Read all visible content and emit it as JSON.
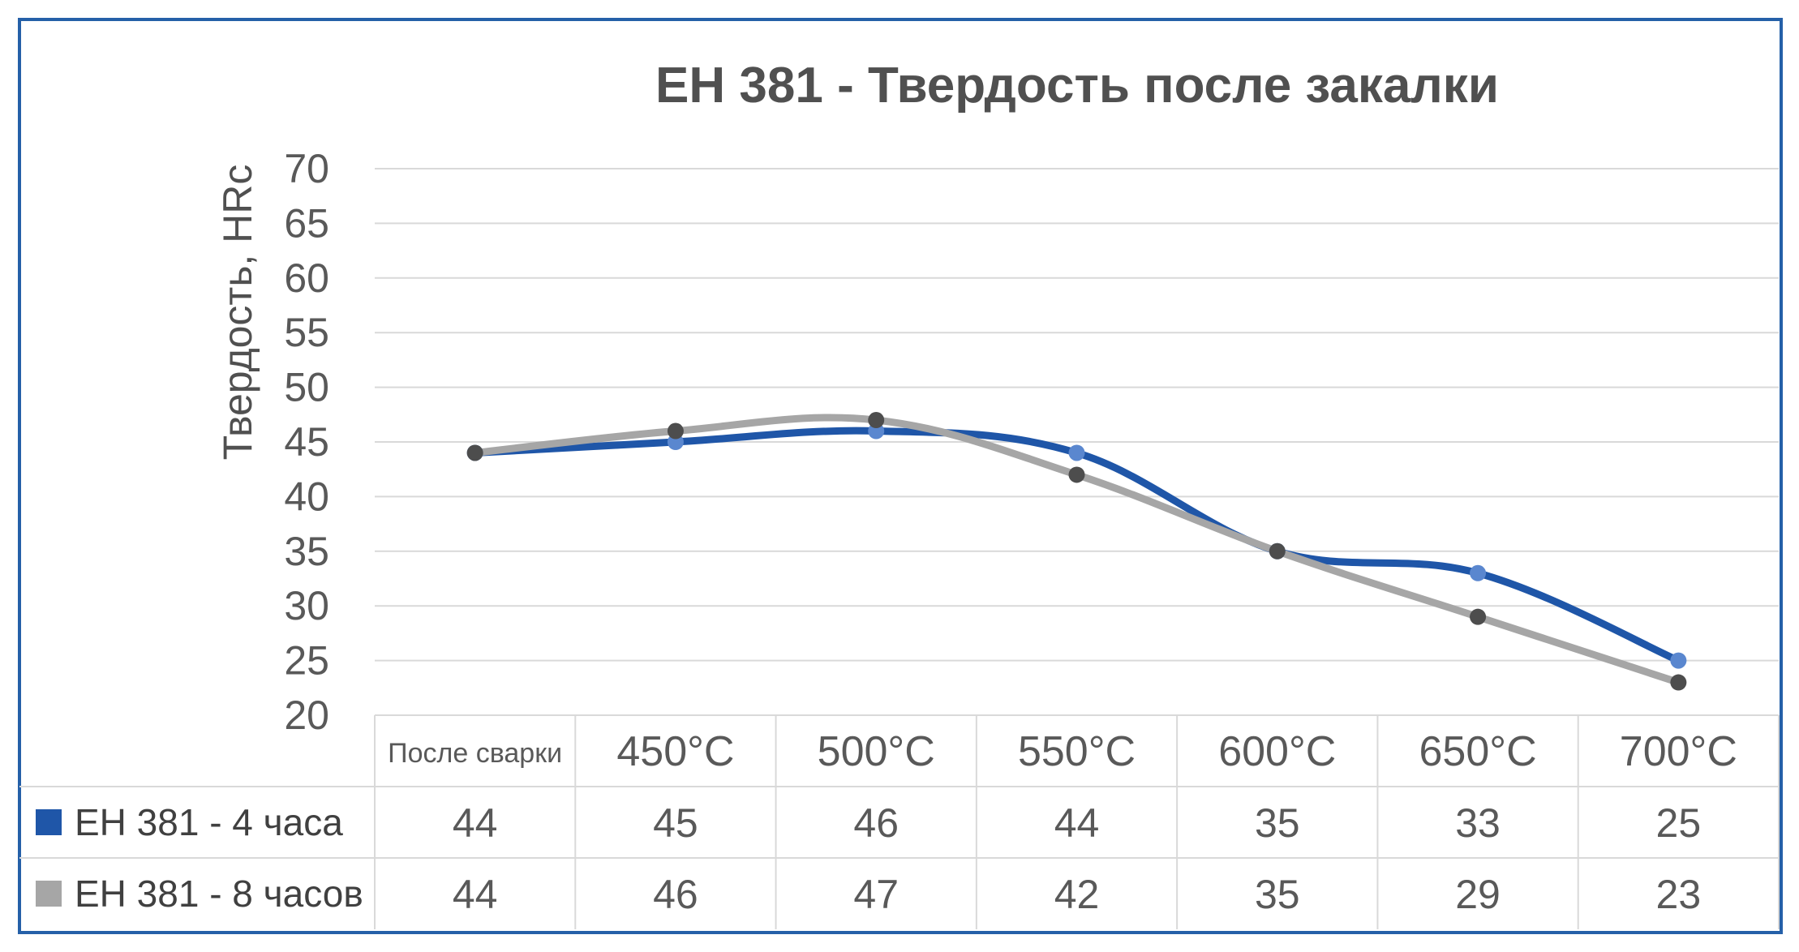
{
  "chart_data": {
    "type": "line",
    "title": "EH 381 - Твердость после закалки",
    "ylabel": "Твердость, HRc",
    "xlabel": "",
    "ylim": [
      20,
      70
    ],
    "y_ticks": [
      "20",
      "25",
      "30",
      "35",
      "40",
      "45",
      "50",
      "55",
      "60",
      "65",
      "70"
    ],
    "categories": [
      "После сварки",
      "450°C",
      "500°C",
      "550°C",
      "600°C",
      "650°C",
      "700°C"
    ],
    "series": [
      {
        "name": "EH 381 - 4 часа",
        "color": "#1F56A8",
        "marker_color": "#5A87CF",
        "values": [
          44,
          45,
          46,
          44,
          35,
          33,
          25
        ]
      },
      {
        "name": "EH 381 - 8 часов",
        "color": "#A6A6A6",
        "marker_color": "#4D4D4D",
        "values": [
          44,
          46,
          47,
          42,
          35,
          29,
          23
        ]
      }
    ],
    "grid": true,
    "legend": "data-table",
    "frame_color": "#2560A8"
  }
}
